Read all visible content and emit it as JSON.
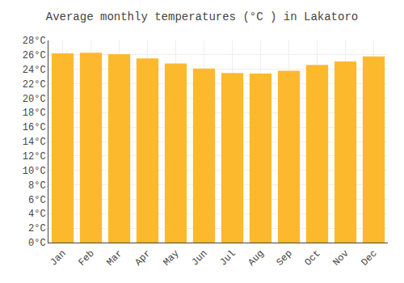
{
  "chart_data": {
    "type": "bar",
    "title": "Average monthly temperatures (°C ) in Lakatoro",
    "categories": [
      "Jan",
      "Feb",
      "Mar",
      "Apr",
      "May",
      "Jun",
      "Jul",
      "Aug",
      "Sep",
      "Oct",
      "Nov",
      "Dec"
    ],
    "values": [
      26.2,
      26.3,
      26.1,
      25.5,
      24.8,
      24.1,
      23.5,
      23.4,
      23.8,
      24.6,
      25.1,
      25.8
    ],
    "color": "#FDB92E",
    "ylim": [
      0,
      28
    ],
    "yticks": [
      {
        "value": 0,
        "label": "0°C"
      },
      {
        "value": 2,
        "label": "2°C"
      },
      {
        "value": 4,
        "label": "4°C"
      },
      {
        "value": 6,
        "label": "6°C"
      },
      {
        "value": 8,
        "label": "8°C"
      },
      {
        "value": 10,
        "label": "10°C"
      },
      {
        "value": 12,
        "label": "12°C"
      },
      {
        "value": 14,
        "label": "14°C"
      },
      {
        "value": 16,
        "label": "16°C"
      },
      {
        "value": 18,
        "label": "18°C"
      },
      {
        "value": 20,
        "label": "20°C"
      },
      {
        "value": 22,
        "label": "22°C"
      },
      {
        "value": 24,
        "label": "24°C"
      },
      {
        "value": 26,
        "label": "26°C"
      },
      {
        "value": 28,
        "label": "28°C"
      }
    ],
    "grid": true
  }
}
